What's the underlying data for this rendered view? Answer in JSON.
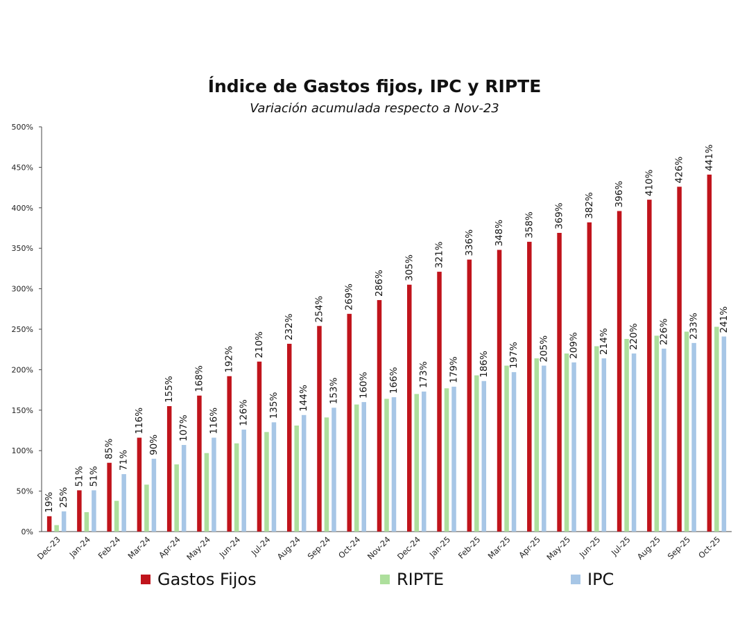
{
  "chart_data": {
    "type": "bar",
    "title": "Índice de Gastos fijos, IPC y RIPTE",
    "subtitle": "Variación acumulada respecto a Nov-23",
    "ylim": [
      0,
      500
    ],
    "yticks": [
      "0%",
      "50%",
      "100%",
      "150%",
      "200%",
      "250%",
      "300%",
      "350%",
      "400%",
      "450%",
      "500%"
    ],
    "categories": [
      "Dec-23",
      "Jan-24",
      "Feb-24",
      "Mar-24",
      "Apr-24",
      "May-24",
      "Jun-24",
      "Jul-24",
      "Aug-24",
      "Sep-24",
      "Oct-24",
      "Nov-24",
      "Dec-24",
      "Jan-25",
      "Feb-25",
      "Mar-25",
      "Apr-25",
      "May-25",
      "Jun-25",
      "Jul-25",
      "Aug-25",
      "Sep-25",
      "Oct-25"
    ],
    "legend_position": "bottom",
    "grid": false,
    "series": [
      {
        "name": "Gastos Fijos",
        "color": "#c0141c",
        "values": [
          19,
          51,
          85,
          116,
          155,
          168,
          192,
          210,
          232,
          254,
          269,
          286,
          305,
          321,
          336,
          348,
          358,
          369,
          382,
          396,
          410,
          426,
          441
        ],
        "labels": [
          "19%",
          "51%",
          "85%",
          "116%",
          "155%",
          "168%",
          "192%",
          "210%",
          "232%",
          "254%",
          "269%",
          "286%",
          "305%",
          "321%",
          "336%",
          "348%",
          "358%",
          "369%",
          "382%",
          "396%",
          "410%",
          "426%",
          "441%"
        ]
      },
      {
        "name": "RIPTE",
        "color": "#addf9c",
        "values": [
          8,
          24,
          38,
          58,
          83,
          97,
          109,
          123,
          131,
          141,
          157,
          164,
          170,
          177,
          193,
          205,
          214,
          220,
          229,
          238,
          242,
          247,
          253
        ],
        "labels": []
      },
      {
        "name": "IPC",
        "color": "#a7c6e6",
        "values": [
          25,
          51,
          71,
          90,
          107,
          116,
          126,
          135,
          144,
          153,
          160,
          166,
          173,
          179,
          186,
          197,
          205,
          209,
          214,
          220,
          226,
          233,
          241
        ],
        "labels": [
          "25%",
          "51%",
          "71%",
          "90%",
          "107%",
          "116%",
          "126%",
          "135%",
          "144%",
          "153%",
          "160%",
          "166%",
          "173%",
          "179%",
          "186%",
          "197%",
          "205%",
          "209%",
          "214%",
          "220%",
          "226%",
          "233%",
          "241%"
        ]
      }
    ]
  }
}
